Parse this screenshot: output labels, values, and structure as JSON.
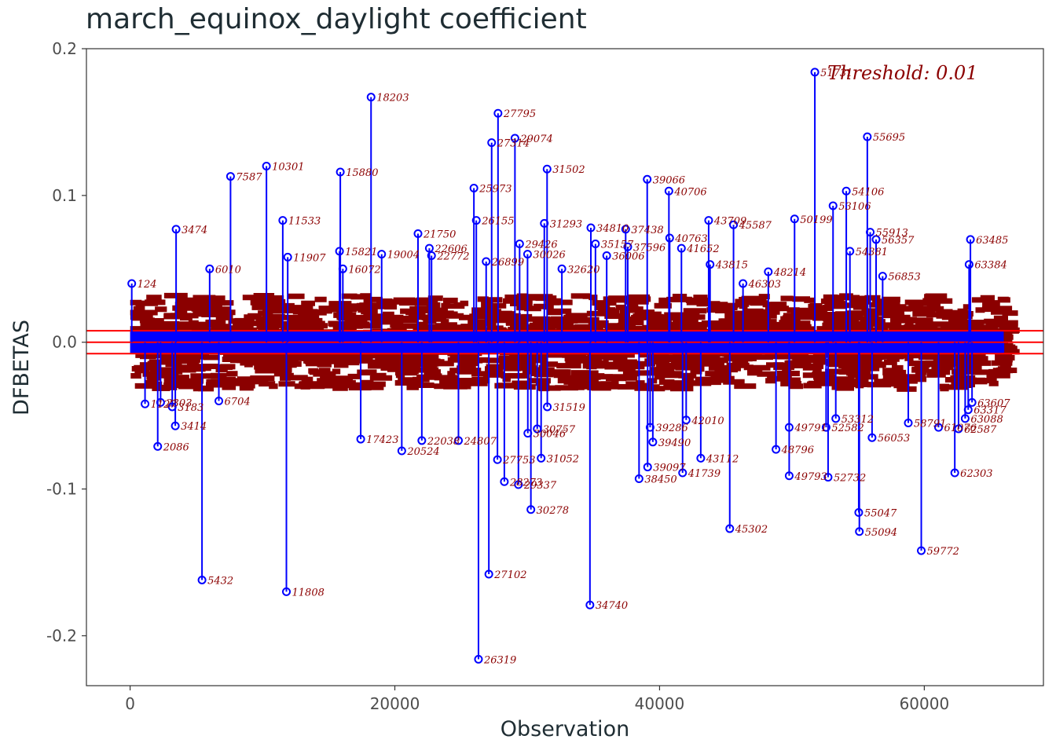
{
  "chart_data": {
    "type": "scatter",
    "style": "lollipop",
    "title": "march_equinox_daylight coefficient",
    "xlabel": "Observation",
    "ylabel": "DFBETAS",
    "xlim": [
      -3300,
      69000
    ],
    "ylim": [
      -0.234,
      0.2
    ],
    "x_ticks": [
      0,
      20000,
      40000,
      60000
    ],
    "x_tick_labels": [
      "0",
      "20000",
      "40000",
      "60000"
    ],
    "y_ticks": [
      0.2,
      0.1,
      0.0,
      -0.1,
      -0.2
    ],
    "y_tick_labels": [
      "0.2",
      "0.1",
      "0.0",
      "-0.1",
      "-0.2"
    ],
    "n_observations": 66000,
    "threshold": 0.0078,
    "threshold_label": "Threshold: 0.01",
    "grid": false,
    "colors": {
      "stem": "#0000ff",
      "label": "#8b0000",
      "threshold": "#ff0000",
      "axis": "#333333"
    },
    "points": [
      {
        "x": 124,
        "y": 0.04,
        "label": "124"
      },
      {
        "x": 1127,
        "y": -0.042,
        "label": "1127"
      },
      {
        "x": 2086,
        "y": -0.071,
        "label": "2086"
      },
      {
        "x": 2303,
        "y": -0.041,
        "label": "2303"
      },
      {
        "x": 3183,
        "y": -0.044,
        "label": "3183"
      },
      {
        "x": 3414,
        "y": -0.057,
        "label": "3414"
      },
      {
        "x": 3474,
        "y": 0.077,
        "label": "3474"
      },
      {
        "x": 5432,
        "y": -0.162,
        "label": "5432"
      },
      {
        "x": 6010,
        "y": 0.05,
        "label": "6010"
      },
      {
        "x": 6704,
        "y": -0.04,
        "label": "6704"
      },
      {
        "x": 7587,
        "y": 0.113,
        "label": "7587"
      },
      {
        "x": 10301,
        "y": 0.12,
        "label": "10301"
      },
      {
        "x": 11533,
        "y": 0.083,
        "label": "11533"
      },
      {
        "x": 11808,
        "y": -0.17,
        "label": "11808"
      },
      {
        "x": 11907,
        "y": 0.058,
        "label": "11907"
      },
      {
        "x": 15880,
        "y": 0.116,
        "label": "15880"
      },
      {
        "x": 15821,
        "y": 0.062,
        "label": "15821"
      },
      {
        "x": 16072,
        "y": 0.05,
        "label": "16072"
      },
      {
        "x": 17423,
        "y": -0.066,
        "label": "17423"
      },
      {
        "x": 18203,
        "y": 0.167,
        "label": "18203"
      },
      {
        "x": 19004,
        "y": 0.06,
        "label": "19004"
      },
      {
        "x": 20524,
        "y": -0.074,
        "label": "20524"
      },
      {
        "x": 21750,
        "y": 0.074,
        "label": "21750"
      },
      {
        "x": 22606,
        "y": 0.064,
        "label": "22606"
      },
      {
        "x": 22772,
        "y": 0.059,
        "label": "22772"
      },
      {
        "x": 22038,
        "y": -0.067,
        "label": "22038"
      },
      {
        "x": 24807,
        "y": -0.067,
        "label": "24807"
      },
      {
        "x": 25973,
        "y": 0.105,
        "label": "25973"
      },
      {
        "x": 26155,
        "y": 0.083,
        "label": "26155"
      },
      {
        "x": 26319,
        "y": -0.216,
        "label": "26319"
      },
      {
        "x": 26899,
        "y": 0.055,
        "label": "26899"
      },
      {
        "x": 27102,
        "y": -0.158,
        "label": "27102"
      },
      {
        "x": 27314,
        "y": 0.136,
        "label": "27314"
      },
      {
        "x": 27753,
        "y": -0.08,
        "label": "27753"
      },
      {
        "x": 27795,
        "y": 0.156,
        "label": "27795"
      },
      {
        "x": 28273,
        "y": -0.095,
        "label": "28273"
      },
      {
        "x": 29074,
        "y": 0.139,
        "label": "29074"
      },
      {
        "x": 29337,
        "y": -0.097,
        "label": "29337"
      },
      {
        "x": 29426,
        "y": 0.067,
        "label": "29426"
      },
      {
        "x": 30026,
        "y": 0.06,
        "label": "30026"
      },
      {
        "x": 30046,
        "y": -0.062,
        "label": "30046"
      },
      {
        "x": 30278,
        "y": -0.114,
        "label": "30278"
      },
      {
        "x": 30757,
        "y": -0.059,
        "label": "30757"
      },
      {
        "x": 31052,
        "y": -0.079,
        "label": "31052"
      },
      {
        "x": 31293,
        "y": 0.081,
        "label": "31293"
      },
      {
        "x": 31502,
        "y": 0.118,
        "label": "31502"
      },
      {
        "x": 31519,
        "y": -0.044,
        "label": "31519"
      },
      {
        "x": 32620,
        "y": 0.05,
        "label": "32620"
      },
      {
        "x": 34740,
        "y": -0.179,
        "label": "34740"
      },
      {
        "x": 34810,
        "y": 0.078,
        "label": "34810"
      },
      {
        "x": 35157,
        "y": 0.067,
        "label": "35157"
      },
      {
        "x": 36006,
        "y": 0.059,
        "label": "36006"
      },
      {
        "x": 37438,
        "y": 0.077,
        "label": "37438"
      },
      {
        "x": 37596,
        "y": 0.065,
        "label": "37596"
      },
      {
        "x": 38450,
        "y": -0.093,
        "label": "38450"
      },
      {
        "x": 39066,
        "y": 0.111,
        "label": "39066"
      },
      {
        "x": 39097,
        "y": -0.085,
        "label": "39097"
      },
      {
        "x": 39286,
        "y": -0.058,
        "label": "39286"
      },
      {
        "x": 39490,
        "y": -0.068,
        "label": "39490"
      },
      {
        "x": 40706,
        "y": 0.103,
        "label": "40706"
      },
      {
        "x": 40763,
        "y": 0.071,
        "label": "40763"
      },
      {
        "x": 41652,
        "y": 0.064,
        "label": "41652"
      },
      {
        "x": 41739,
        "y": -0.089,
        "label": "41739"
      },
      {
        "x": 42010,
        "y": -0.053,
        "label": "42010"
      },
      {
        "x": 43112,
        "y": -0.079,
        "label": "43112"
      },
      {
        "x": 43709,
        "y": 0.083,
        "label": "43709"
      },
      {
        "x": 43815,
        "y": 0.053,
        "label": "43815"
      },
      {
        "x": 45302,
        "y": -0.127,
        "label": "45302"
      },
      {
        "x": 45587,
        "y": 0.08,
        "label": "45587"
      },
      {
        "x": 46303,
        "y": 0.04,
        "label": "46303"
      },
      {
        "x": 48214,
        "y": 0.048,
        "label": "48214"
      },
      {
        "x": 48796,
        "y": -0.073,
        "label": "48796"
      },
      {
        "x": 49793,
        "y": -0.091,
        "label": "49793"
      },
      {
        "x": 49791,
        "y": -0.058,
        "label": "49791"
      },
      {
        "x": 50199,
        "y": 0.084,
        "label": "50199"
      },
      {
        "x": 51731,
        "y": 0.184,
        "label": "51731"
      },
      {
        "x": 52582,
        "y": -0.058,
        "label": "52582"
      },
      {
        "x": 52732,
        "y": -0.092,
        "label": "52732"
      },
      {
        "x": 53106,
        "y": 0.093,
        "label": "53106"
      },
      {
        "x": 53312,
        "y": -0.052,
        "label": "53312"
      },
      {
        "x": 54106,
        "y": 0.103,
        "label": "54106"
      },
      {
        "x": 54381,
        "y": 0.062,
        "label": "54381"
      },
      {
        "x": 55047,
        "y": -0.116,
        "label": "55047"
      },
      {
        "x": 55094,
        "y": -0.129,
        "label": "55094"
      },
      {
        "x": 55695,
        "y": 0.14,
        "label": "55695"
      },
      {
        "x": 55913,
        "y": 0.075,
        "label": "55913"
      },
      {
        "x": 56053,
        "y": -0.065,
        "label": "56053"
      },
      {
        "x": 56357,
        "y": 0.07,
        "label": "56357"
      },
      {
        "x": 56853,
        "y": 0.045,
        "label": "56853"
      },
      {
        "x": 58791,
        "y": -0.055,
        "label": "58791"
      },
      {
        "x": 59772,
        "y": -0.142,
        "label": "59772"
      },
      {
        "x": 61076,
        "y": -0.058,
        "label": "61076"
      },
      {
        "x": 62303,
        "y": -0.089,
        "label": "62303"
      },
      {
        "x": 62587,
        "y": -0.059,
        "label": "62587"
      },
      {
        "x": 63088,
        "y": -0.052,
        "label": "63088"
      },
      {
        "x": 63317,
        "y": -0.046,
        "label": "63317"
      },
      {
        "x": 63485,
        "y": 0.07,
        "label": "63485"
      },
      {
        "x": 63607,
        "y": -0.041,
        "label": "63607"
      },
      {
        "x": 63384,
        "y": 0.053,
        "label": "63384"
      }
    ]
  }
}
